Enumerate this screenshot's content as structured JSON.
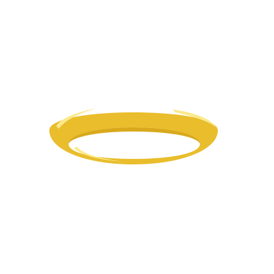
{
  "illustration": {
    "icon": "halo-icon",
    "colors": {
      "background": "#ffffff",
      "ring_main": "#e9bd2c",
      "ring_shadow": "#d9a91b",
      "highlight": "#fbe98a"
    }
  }
}
